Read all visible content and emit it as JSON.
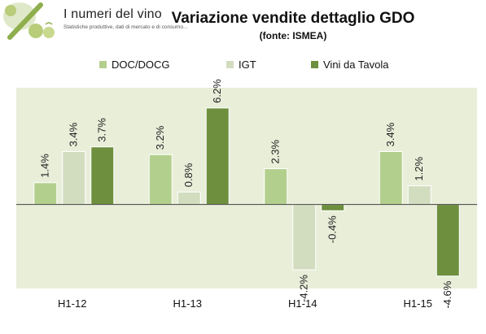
{
  "logo": {
    "title": "I numeri del vino",
    "subtitle": "Statistiche produttive, dati di mercato e di consumo..."
  },
  "colors": {
    "plot_bg": "#e9eed9",
    "doc_docg": "#b3cf8d",
    "igt": "#d2ddc0",
    "vini_da_tavola": "#6e8f3e",
    "axis": "#404040"
  },
  "chart_data": {
    "type": "bar",
    "title": "Variazione vendite dettaglio GDO",
    "subtitle": "(fonte: ISMEA)",
    "categories": [
      "H1-12",
      "H1-13",
      "H1-14",
      "H1-15"
    ],
    "series": [
      {
        "name": "DOC/DOCG",
        "values": [
          1.4,
          3.2,
          2.3,
          3.4
        ],
        "labels": [
          "1.4%",
          "3.2%",
          "2.3%",
          "3.4%"
        ]
      },
      {
        "name": "IGT",
        "values": [
          3.4,
          0.8,
          -4.2,
          1.2
        ],
        "labels": [
          "3.4%",
          "0.8%",
          "-4.2%",
          "1.2%"
        ]
      },
      {
        "name": "Vini da Tavola",
        "values": [
          3.7,
          6.2,
          -0.4,
          -4.6
        ],
        "labels": [
          "3.7%",
          "6.2%",
          "-0.4%",
          "-4.6%"
        ]
      }
    ],
    "ylim": [
      -5.4,
      7.5
    ],
    "grid": false,
    "legend_position": "top-center",
    "data_label_orientation": "vertical"
  }
}
